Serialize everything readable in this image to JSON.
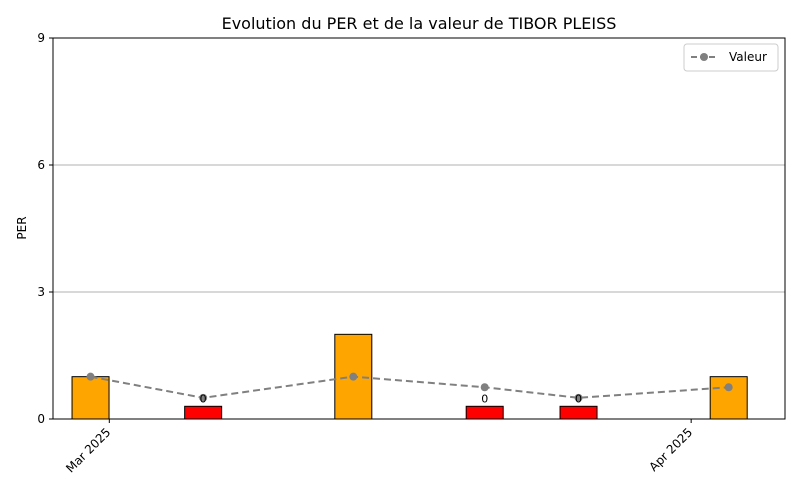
{
  "chart_data": {
    "type": "bar",
    "title": "Evolution du PER et de la valeur de TIBOR PLEISS",
    "xlabel": "",
    "ylabel": "PER",
    "ylim": [
      0,
      9
    ],
    "yticks": [
      0,
      3,
      6,
      9
    ],
    "grid": "horizontal",
    "legend_position": "top-right",
    "x_date_range": [
      "2025-02-26",
      "2025-04-06"
    ],
    "xticks": [
      {
        "date": "2025-03-01",
        "label": "Mar 2025"
      },
      {
        "date": "2025-04-01",
        "label": "Apr 2025"
      }
    ],
    "bars": [
      {
        "date": "2025-02-28",
        "value": 1.0,
        "color": "#ffa500",
        "label": ""
      },
      {
        "date": "2025-03-06",
        "value": 0.3,
        "color": "#ff0000",
        "label": "0"
      },
      {
        "date": "2025-03-14",
        "value": 2.0,
        "color": "#ffa500",
        "label": ""
      },
      {
        "date": "2025-03-21",
        "value": 0.3,
        "color": "#ff0000",
        "label": "0"
      },
      {
        "date": "2025-03-26",
        "value": 0.3,
        "color": "#ff0000",
        "label": "0"
      },
      {
        "date": "2025-04-03",
        "value": 1.0,
        "color": "#ffa500",
        "label": ""
      }
    ],
    "series": [
      {
        "name": "Valeur",
        "type": "line",
        "color": "#808080",
        "style": "dashed",
        "marker": "circle",
        "x": [
          "2025-02-28",
          "2025-03-06",
          "2025-03-14",
          "2025-03-21",
          "2025-03-26",
          "2025-04-03"
        ],
        "y": [
          1.0,
          0.5,
          1.0,
          0.75,
          0.5,
          0.75
        ]
      }
    ]
  }
}
